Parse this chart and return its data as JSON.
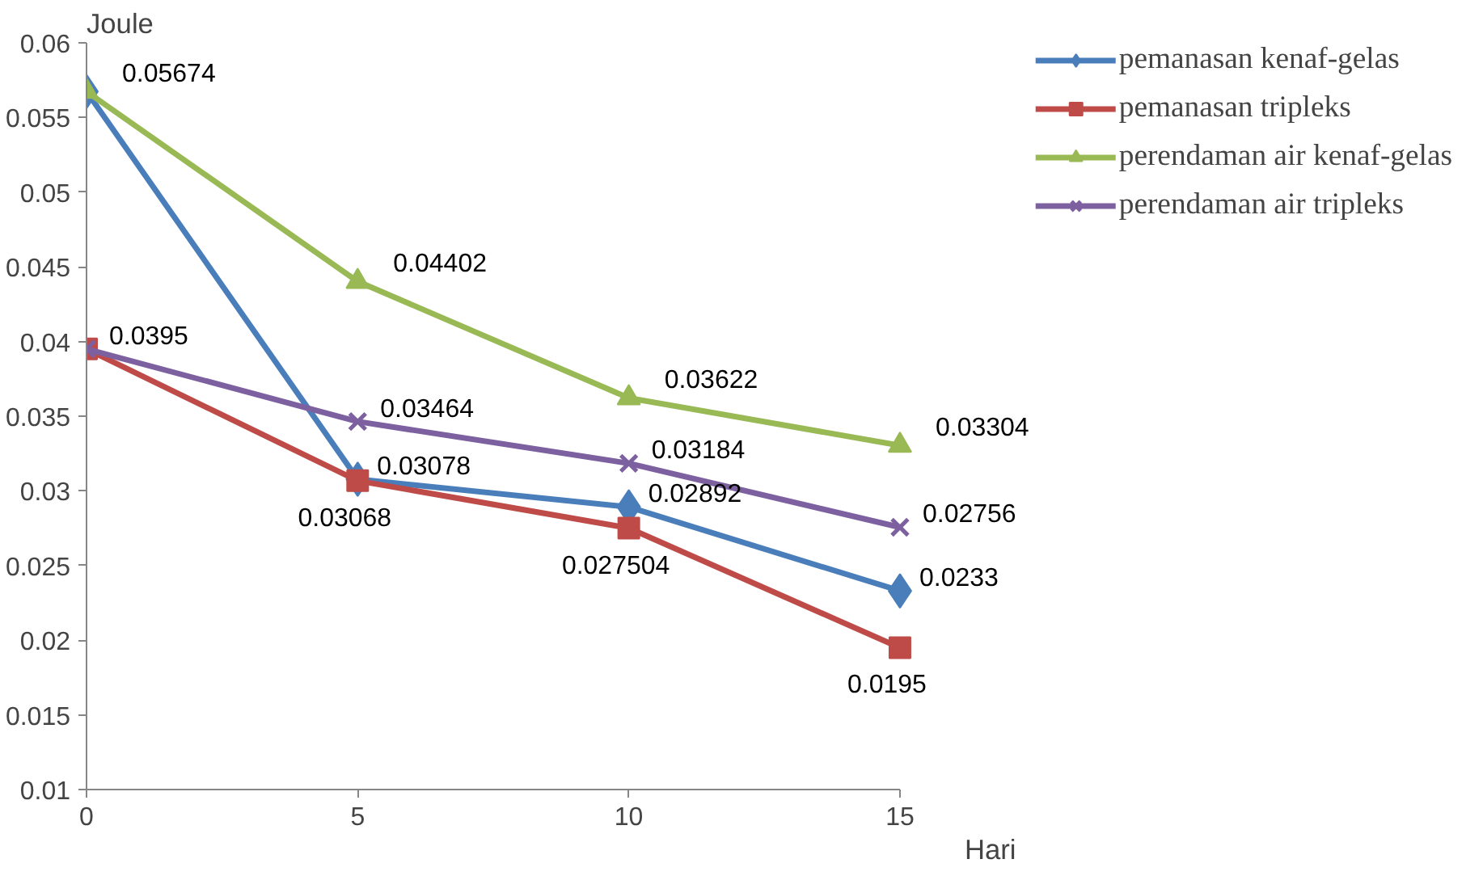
{
  "chart_data": {
    "type": "line",
    "xlabel": "Hari",
    "ylabel": "Joule",
    "x": [
      0,
      5,
      10,
      15
    ],
    "xlim": [
      0,
      15
    ],
    "xticks": [
      0,
      5,
      10,
      15
    ],
    "ylim": [
      0.01,
      0.06
    ],
    "yticks": [
      0.01,
      0.015,
      0.02,
      0.025,
      0.03,
      0.035,
      0.04,
      0.045,
      0.05,
      0.055,
      0.06
    ],
    "grid": false,
    "legend": "top right",
    "line_style": "solid",
    "series": [
      {
        "name": "pemanasan kenaf-gelas",
        "color": "#4a7ebb",
        "marker": "diamond",
        "values": [
          0.05674,
          0.03078,
          0.02892,
          0.0233
        ],
        "value_labels": [
          null,
          "0.03078",
          "0.02892",
          "0.0233"
        ]
      },
      {
        "name": "pemanasan tripleks",
        "color": "#be4b48",
        "marker": "square",
        "values": [
          0.0395,
          0.03068,
          0.027504,
          0.0195
        ],
        "value_labels": [
          null,
          "0.03068",
          "0.027504",
          "0.0195"
        ]
      },
      {
        "name": "perendaman air kenaf-gelas",
        "color": "#98b954",
        "marker": "triangle",
        "values": [
          0.05674,
          0.04402,
          0.03622,
          0.03304
        ],
        "value_labels": [
          "0.05674",
          "0.04402",
          "0.03622",
          "0.03304"
        ]
      },
      {
        "name": "perendaman air tripleks",
        "color": "#7d60a0",
        "marker": "x",
        "values": [
          0.0395,
          0.03464,
          0.03184,
          0.02756
        ],
        "value_labels": [
          "0.0395",
          "0.03464",
          "0.03184",
          "0.02756"
        ]
      }
    ]
  }
}
